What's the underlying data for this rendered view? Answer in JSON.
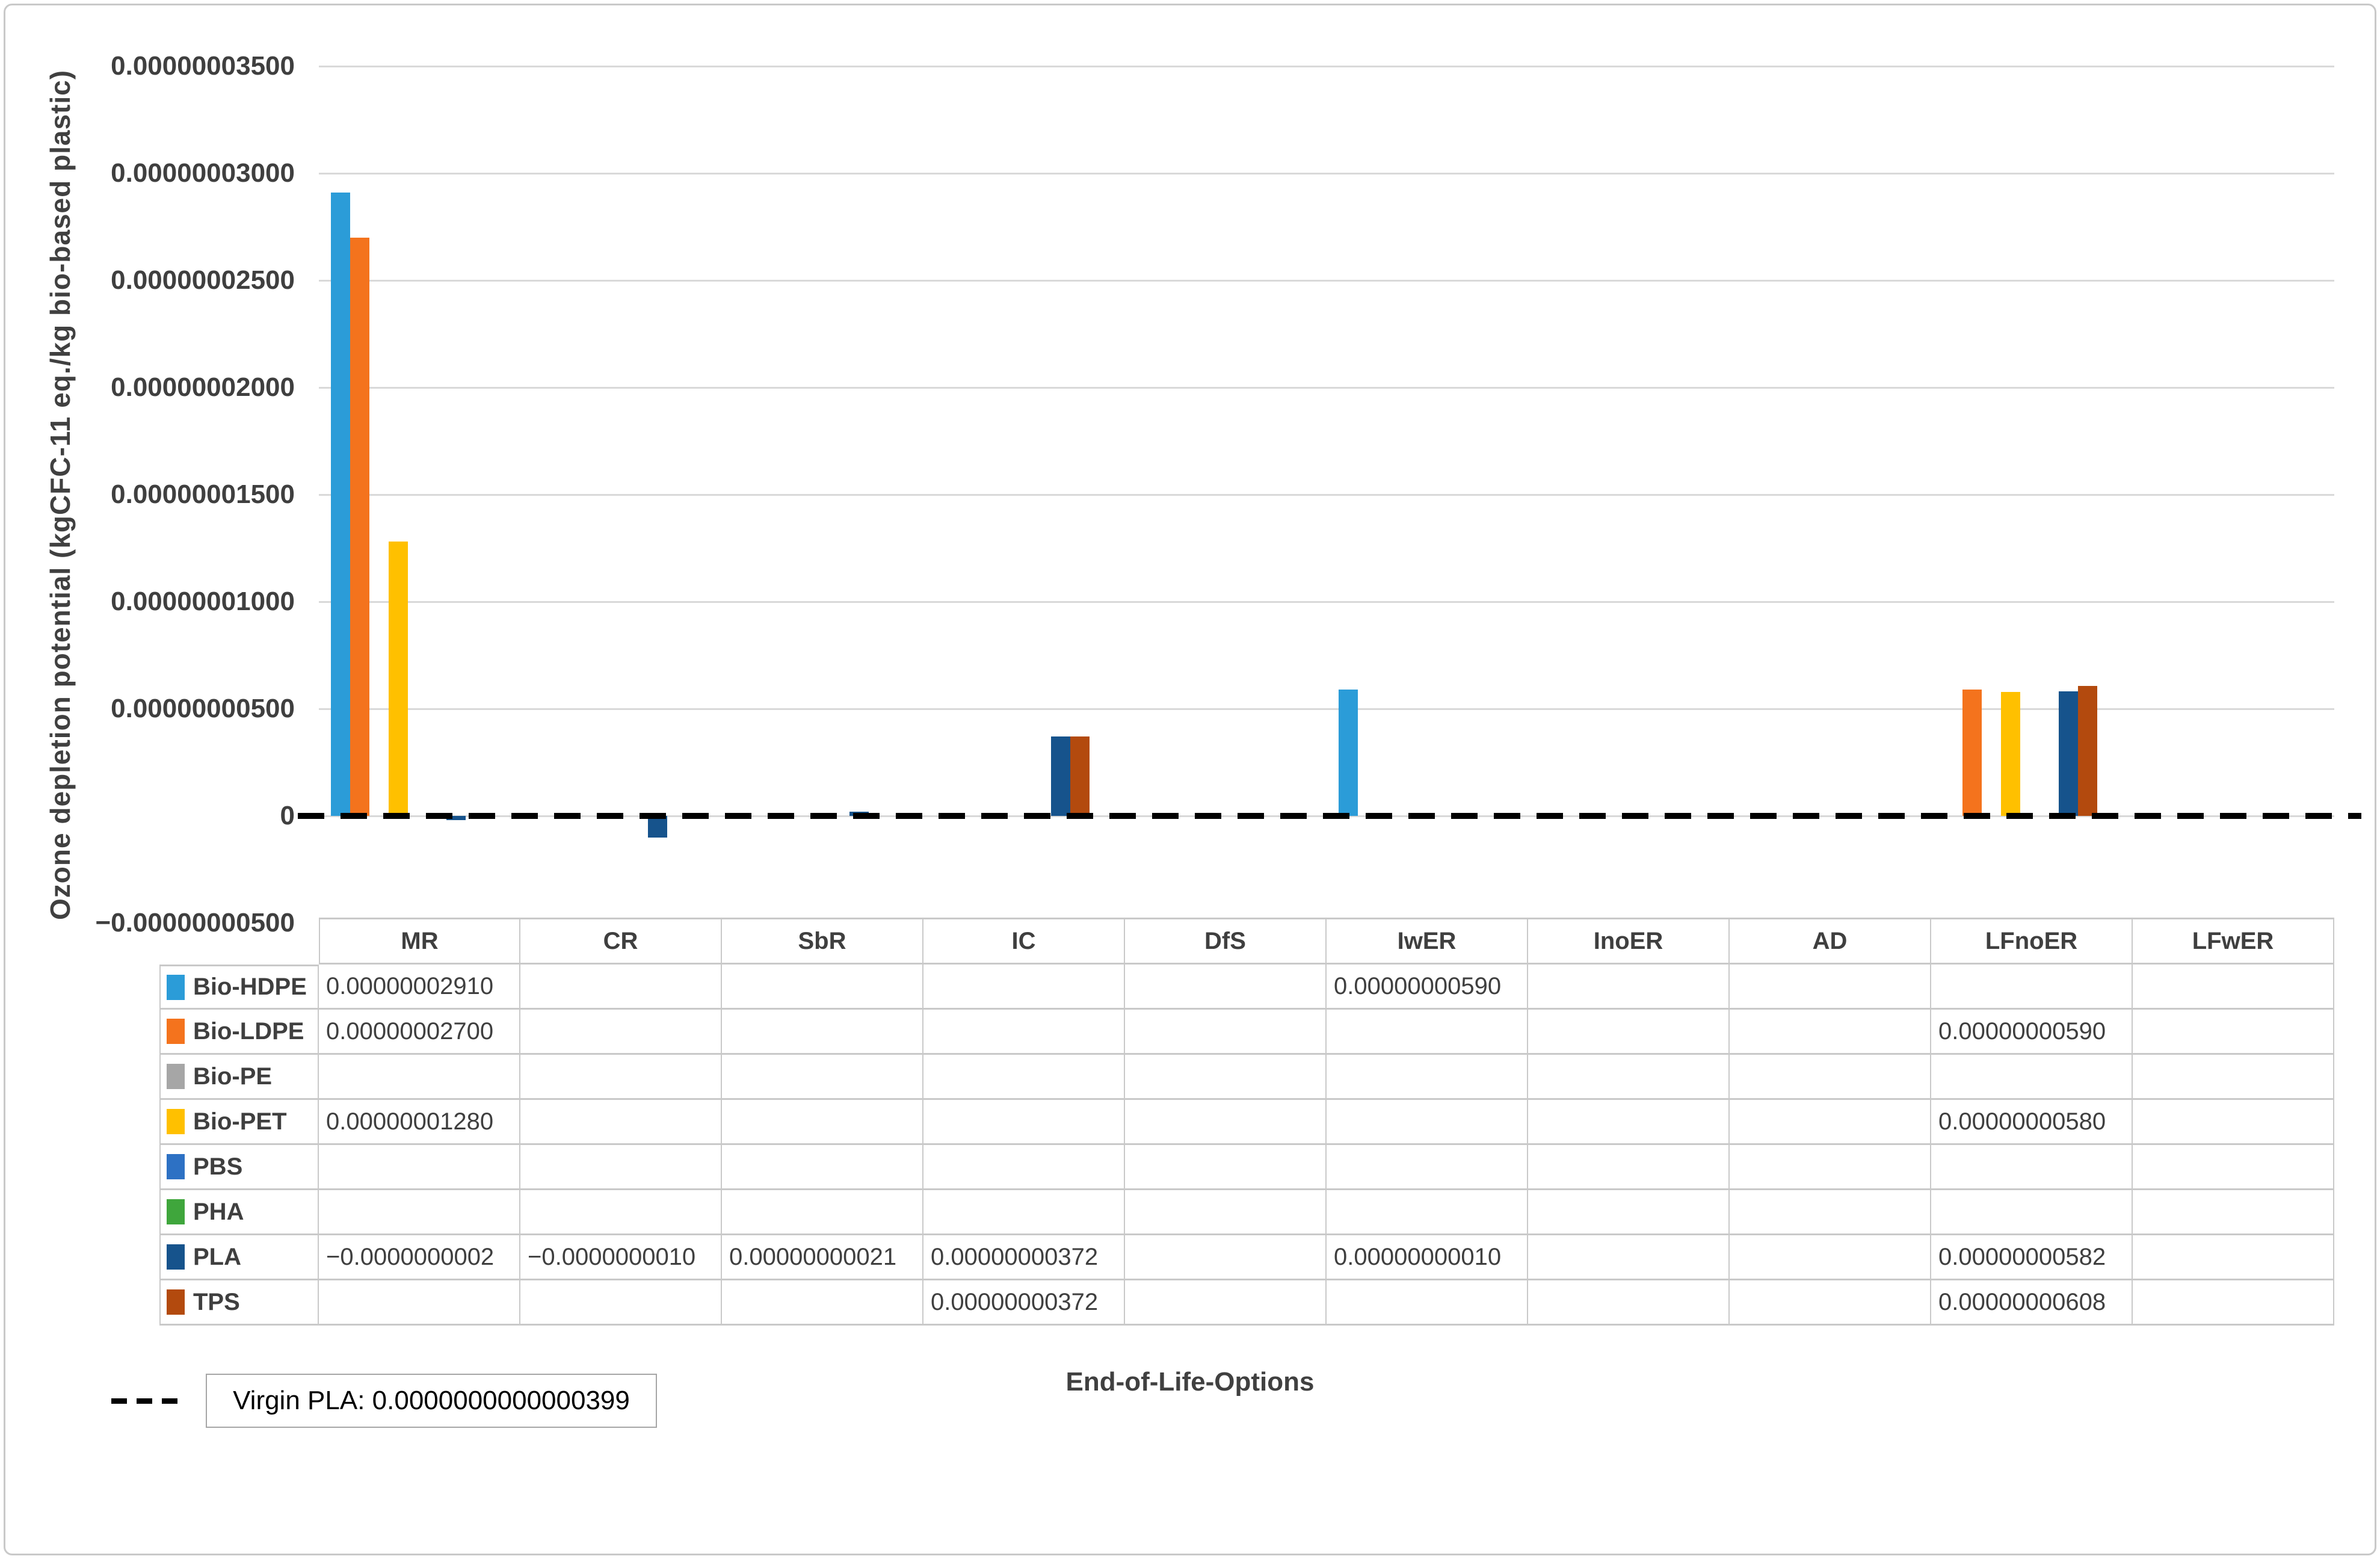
{
  "figure": {
    "y_axis_title": "Ozone depletion potential (kgCFC-11 eq./kg bio-based plastic)",
    "x_axis_title": "End-of-Life-Options",
    "reference_legend_label": "Virgin PLA: 0.0000000000000399"
  },
  "chart_data": {
    "type": "bar",
    "title": "",
    "xlabel": "End-of-Life-Options",
    "ylabel": "Ozone depletion potential (kgCFC-11 eq./kg bio-based plastic)",
    "categories": [
      "MR",
      "CR",
      "SbR",
      "IC",
      "DfS",
      "IwER",
      "InoER",
      "AD",
      "LFnoER",
      "LFwER"
    ],
    "ylim": [
      -5e-09,
      3.5e-08
    ],
    "grid": true,
    "legend_position": "table-left",
    "yticks": [
      {
        "value": 3.5e-08,
        "label": "0.00000003500"
      },
      {
        "value": 3e-08,
        "label": "0.00000003000"
      },
      {
        "value": 2.5e-08,
        "label": "0.00000002500"
      },
      {
        "value": 2e-08,
        "label": "0.00000002000"
      },
      {
        "value": 1.5e-08,
        "label": "0.00000001500"
      },
      {
        "value": 1e-08,
        "label": "0.00000001000"
      },
      {
        "value": 5e-09,
        "label": "0.00000000500"
      },
      {
        "value": 0,
        "label": "0"
      },
      {
        "value": -5e-09,
        "label": "−0.00000000500"
      }
    ],
    "series": [
      {
        "name": "Bio-HDPE",
        "color": "#2B9CD8",
        "values": [
          2.91e-08,
          null,
          null,
          null,
          null,
          5.9e-09,
          null,
          null,
          null,
          null
        ]
      },
      {
        "name": "Bio-LDPE",
        "color": "#F4731D",
        "values": [
          2.7e-08,
          null,
          null,
          null,
          null,
          null,
          null,
          null,
          5.9e-09,
          null
        ]
      },
      {
        "name": "Bio-PE",
        "color": "#A6A6A6",
        "values": [
          null,
          null,
          null,
          null,
          null,
          null,
          null,
          null,
          null,
          null
        ]
      },
      {
        "name": "Bio-PET",
        "color": "#FFC000",
        "values": [
          1.28e-08,
          null,
          null,
          null,
          null,
          null,
          null,
          null,
          5.8e-09,
          null
        ]
      },
      {
        "name": "PBS",
        "color": "#2D71C4",
        "values": [
          null,
          null,
          null,
          null,
          null,
          null,
          null,
          null,
          null,
          null
        ]
      },
      {
        "name": "PHA",
        "color": "#3FA63C",
        "values": [
          null,
          null,
          null,
          null,
          null,
          null,
          null,
          null,
          null,
          null
        ]
      },
      {
        "name": "PLA",
        "color": "#16538C",
        "values": [
          -2e-10,
          -1e-09,
          2.1e-10,
          3.72e-09,
          null,
          1e-10,
          null,
          null,
          5.82e-09,
          null
        ]
      },
      {
        "name": "TPS",
        "color": "#B34A0E",
        "values": [
          null,
          null,
          null,
          3.72e-09,
          null,
          null,
          null,
          null,
          6.08e-09,
          null
        ]
      }
    ],
    "reference_line": {
      "label": "Virgin PLA: 0.0000000000000399",
      "value": 3.99e-14,
      "style": "dashed",
      "color": "#000000"
    }
  },
  "table": {
    "headers": [
      "MR",
      "CR",
      "SbR",
      "IC",
      "DfS",
      "IwER",
      "InoER",
      "AD",
      "LFnoER",
      "LFwER"
    ],
    "rows": [
      {
        "name": "Bio-HDPE",
        "cells": [
          "0.00000002910",
          "",
          "",
          "",
          "",
          "0.00000000590",
          "",
          "",
          "",
          ""
        ]
      },
      {
        "name": "Bio-LDPE",
        "cells": [
          "0.00000002700",
          "",
          "",
          "",
          "",
          "",
          "",
          "",
          "0.00000000590",
          ""
        ]
      },
      {
        "name": "Bio-PE",
        "cells": [
          "",
          "",
          "",
          "",
          "",
          "",
          "",
          "",
          "",
          ""
        ]
      },
      {
        "name": "Bio-PET",
        "cells": [
          "0.00000001280",
          "",
          "",
          "",
          "",
          "",
          "",
          "",
          "0.00000000580",
          ""
        ]
      },
      {
        "name": "PBS",
        "cells": [
          "",
          "",
          "",
          "",
          "",
          "",
          "",
          "",
          "",
          ""
        ]
      },
      {
        "name": "PHA",
        "cells": [
          "",
          "",
          "",
          "",
          "",
          "",
          "",
          "",
          "",
          ""
        ]
      },
      {
        "name": "PLA",
        "cells": [
          "−0.0000000002",
          "−0.0000000010",
          "0.00000000021",
          "0.00000000372",
          "",
          "0.00000000010",
          "",
          "",
          "0.00000000582",
          ""
        ]
      },
      {
        "name": "TPS",
        "cells": [
          "",
          "",
          "",
          "0.00000000372",
          "",
          "",
          "",
          "",
          "0.00000000608",
          ""
        ]
      }
    ]
  }
}
